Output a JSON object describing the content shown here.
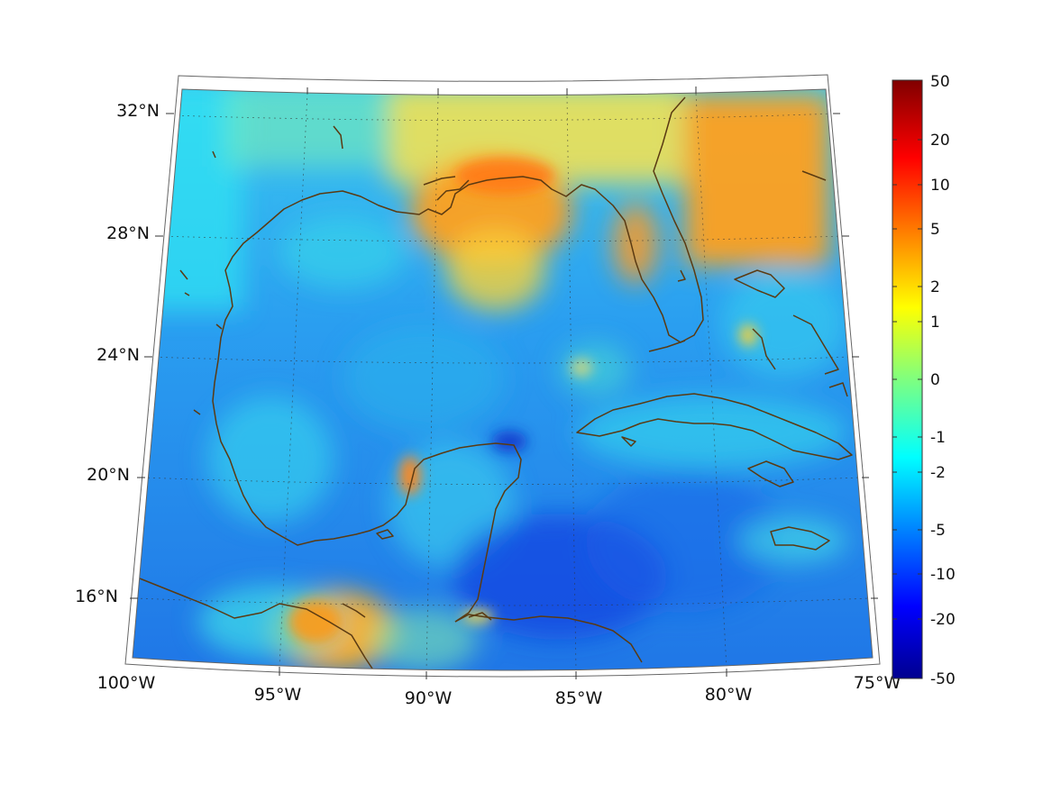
{
  "map": {
    "lat_labels": [
      "32°N",
      "28°N",
      "24°N",
      "20°N",
      "16°N"
    ],
    "lon_labels": [
      "100°W",
      "95°W",
      "90°W",
      "85°W",
      "80°W",
      "75°W"
    ],
    "coastline_color": "#5a3a12",
    "grid_style": "dotted"
  },
  "colorbar": {
    "colormap": "jet",
    "tick_labels": [
      "50",
      "20",
      "10",
      "5",
      "2",
      "1",
      "0",
      "-1",
      "-2",
      "-5",
      "-10",
      "-20",
      "-50"
    ]
  }
}
